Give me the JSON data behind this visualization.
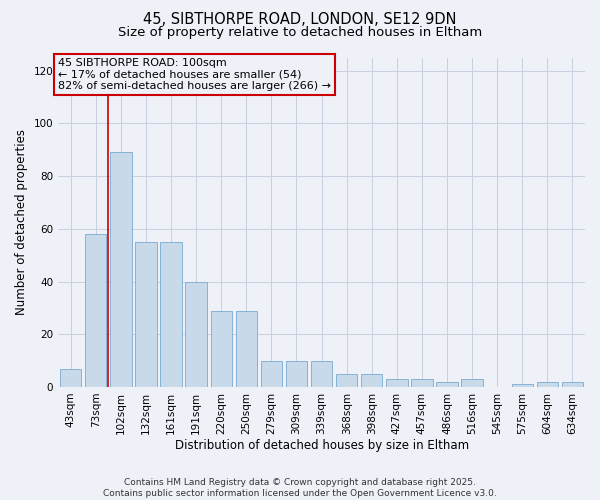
{
  "title_line1": "45, SIBTHORPE ROAD, LONDON, SE12 9DN",
  "title_line2": "Size of property relative to detached houses in Eltham",
  "xlabel": "Distribution of detached houses by size in Eltham",
  "ylabel": "Number of detached properties",
  "bar_color": "#c8d9ea",
  "bar_edge_color": "#7aaad0",
  "grid_color": "#c8d0e0",
  "background_color": "#eef2f8",
  "plot_bg_color": "#eef2f8",
  "vline_color": "#cc0000",
  "annotation_box_edge": "#cc0000",
  "annotation_text": "45 SIBTHORPE ROAD: 100sqm\n← 17% of detached houses are smaller (54)\n82% of semi-detached houses are larger (266) →",
  "categories": [
    "43sqm",
    "73sqm",
    "102sqm",
    "132sqm",
    "161sqm",
    "191sqm",
    "220sqm",
    "250sqm",
    "279sqm",
    "309sqm",
    "339sqm",
    "368sqm",
    "398sqm",
    "427sqm",
    "457sqm",
    "486sqm",
    "516sqm",
    "545sqm",
    "575sqm",
    "604sqm",
    "634sqm"
  ],
  "values": [
    7,
    58,
    89,
    55,
    55,
    40,
    29,
    29,
    10,
    10,
    10,
    5,
    5,
    3,
    3,
    2,
    3,
    0,
    1,
    2,
    2
  ],
  "ylim": [
    0,
    125
  ],
  "yticks": [
    0,
    20,
    40,
    60,
    80,
    100,
    120
  ],
  "footer": "Contains HM Land Registry data © Crown copyright and database right 2025.\nContains public sector information licensed under the Open Government Licence v3.0.",
  "title_fontsize": 10.5,
  "subtitle_fontsize": 9.5,
  "axis_label_fontsize": 8.5,
  "tick_fontsize": 7.5,
  "annotation_fontsize": 8,
  "footer_fontsize": 6.5
}
